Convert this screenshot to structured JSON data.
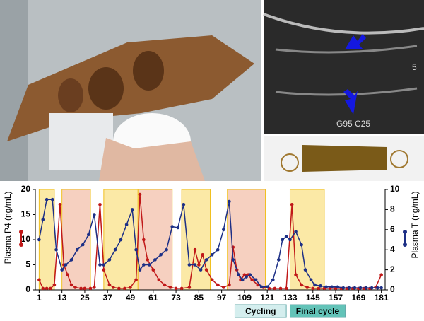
{
  "chart_data": {
    "type": "line",
    "ylabel": "Plasma P4 (ng/mL)",
    "y2label": "Plasma T (ng/mL)",
    "xlim": [
      -1,
      183
    ],
    "xticks": [
      1,
      13,
      25,
      37,
      49,
      61,
      73,
      85,
      97,
      109,
      121,
      133,
      145,
      157,
      169,
      181
    ],
    "ylim": [
      0,
      20
    ],
    "yticks": [
      0,
      5,
      10,
      15,
      20
    ],
    "y2lim": [
      0,
      10
    ],
    "y2ticks": [
      0,
      2,
      4,
      6,
      8,
      10
    ],
    "regions": [
      {
        "start": 1,
        "end": 9,
        "color": "#fbe9a6"
      },
      {
        "start": 13,
        "end": 28,
        "color": "#f6d0c0"
      },
      {
        "start": 35,
        "end": 53,
        "color": "#fbe9a6"
      },
      {
        "start": 53,
        "end": 71,
        "color": "#f6d0c0"
      },
      {
        "start": 76,
        "end": 91,
        "color": "#fbe9a6"
      },
      {
        "start": 100,
        "end": 120,
        "color": "#f6d0c0"
      },
      {
        "start": 133,
        "end": 151,
        "color": "#fbe9a6"
      }
    ],
    "annotations": [
      {
        "text": "Cycling",
        "start": 104,
        "end": 131,
        "color": "#d4eeee"
      },
      {
        "text": "Final cycle",
        "start": 133,
        "end": 162,
        "color": "#63c3b8"
      }
    ],
    "image_labels": [
      "G95 C25",
      "5"
    ],
    "series": [
      {
        "name": "Plasma P4",
        "color": "#c01818",
        "axis": "y",
        "x": [
          1,
          3,
          5,
          7,
          9,
          12,
          14,
          16,
          18,
          20,
          23,
          25,
          28,
          30,
          33,
          35,
          38,
          40,
          43,
          46,
          49,
          52,
          54,
          56,
          58,
          61,
          64,
          67,
          70,
          73,
          76,
          80,
          83,
          85,
          87,
          89,
          92,
          95,
          98,
          101,
          103,
          105,
          107,
          109,
          111,
          113,
          116,
          119,
          122,
          125,
          128,
          131,
          134,
          136,
          139,
          142,
          145,
          148,
          151,
          154,
          157,
          160,
          163,
          166,
          169,
          172,
          175,
          178,
          181
        ],
        "values": [
          2,
          0.3,
          0.3,
          0.3,
          1,
          17,
          5,
          3,
          1,
          0.5,
          0.3,
          0.3,
          0.3,
          0.5,
          17,
          4,
          1,
          0.5,
          0.3,
          0.3,
          0.5,
          2,
          19,
          10,
          6,
          4,
          2,
          1,
          0.5,
          0.3,
          0.3,
          0.5,
          8,
          5,
          7,
          4,
          2,
          1,
          0.5,
          1,
          8.5,
          4,
          2,
          3,
          3,
          2,
          1,
          0.5,
          0.3,
          0.3,
          0.3,
          0.3,
          17,
          3,
          1,
          0.5,
          0.3,
          0.3,
          0.3,
          0.3,
          0.3,
          0.3,
          0.3,
          0.3,
          0.3,
          0.3,
          0.3,
          0.5,
          3
        ]
      },
      {
        "name": "Plasma T",
        "color": "#1c2f86",
        "axis": "y2",
        "x": [
          1,
          3,
          5,
          8,
          10,
          13,
          15,
          18,
          21,
          24,
          27,
          30,
          33,
          35,
          38,
          41,
          44,
          47,
          50,
          52,
          54,
          56,
          59,
          62,
          65,
          68,
          71,
          74,
          77,
          80,
          83,
          86,
          89,
          92,
          95,
          98,
          101,
          103,
          106,
          108,
          110,
          112,
          115,
          118,
          121,
          124,
          127,
          129,
          131,
          133,
          136,
          139,
          141,
          144,
          146,
          149,
          152,
          155,
          158,
          161,
          164,
          167,
          170,
          173,
          176,
          179,
          181
        ],
        "values": [
          5,
          7,
          9,
          9,
          4,
          2,
          2.5,
          3,
          4,
          4.5,
          5.5,
          7.5,
          2.5,
          2.5,
          3,
          4,
          5,
          6.5,
          8,
          4,
          2,
          2.5,
          2.5,
          3,
          3.5,
          4,
          6.3,
          6.2,
          8.5,
          2.5,
          2.5,
          2,
          3,
          3.5,
          4,
          6,
          8.8,
          3,
          1.5,
          1,
          1.3,
          1.5,
          1,
          0.3,
          0.3,
          1,
          3,
          5,
          5.3,
          5,
          5.8,
          4.5,
          2,
          1,
          0.5,
          0.4,
          0.3,
          0.3,
          0.3,
          0.2,
          0.2,
          0.2,
          0.2,
          0.2,
          0.2,
          0.2,
          0.2
        ]
      }
    ]
  }
}
